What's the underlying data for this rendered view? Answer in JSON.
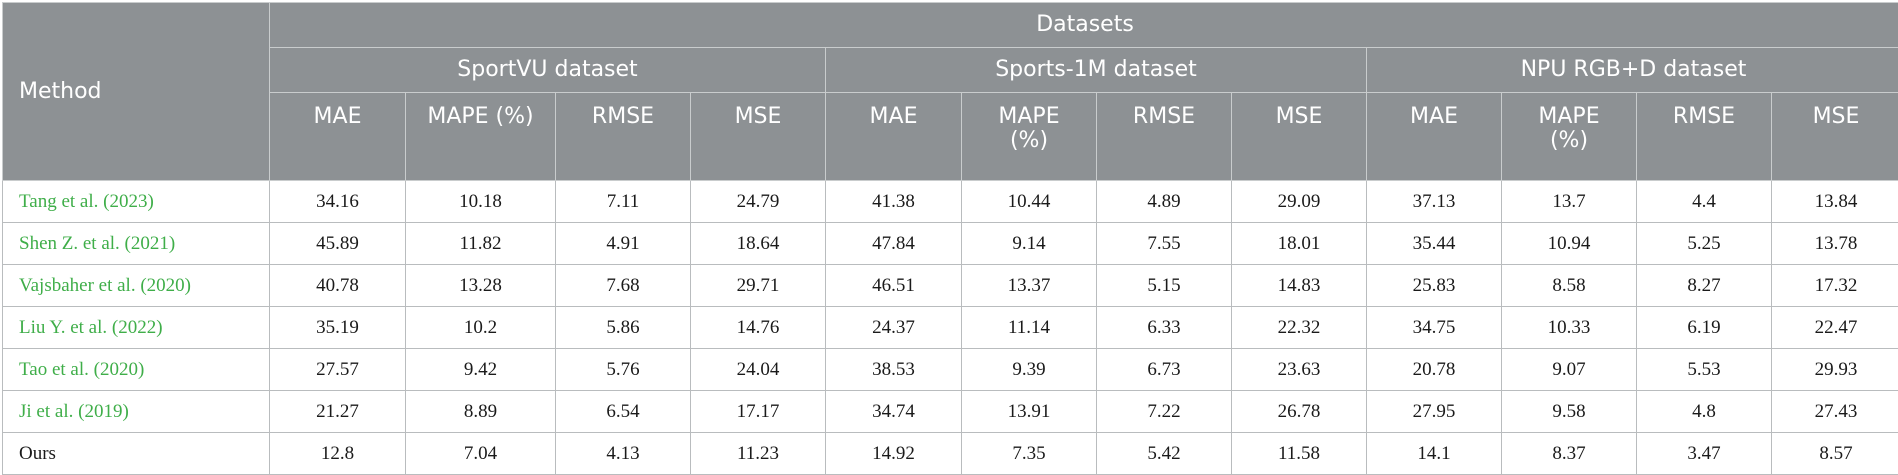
{
  "header": {
    "method_label": "Method",
    "datasets_label": "Datasets",
    "groups": [
      "SportVU dataset",
      "Sports-1M dataset",
      "NPU RGB+D dataset"
    ],
    "metrics": [
      "MAE",
      "MAPE (%)",
      "RMSE",
      "MSE",
      "MAE",
      "MAPE\n(%)",
      "RMSE",
      "MSE",
      "MAE",
      "MAPE\n(%)",
      "RMSE",
      "MSE"
    ]
  },
  "rows": [
    {
      "author": "Tang et al. (",
      "year": "2023",
      "close": ")",
      "values": [
        "34.16",
        "10.18",
        "7.11",
        "24.79",
        "41.38",
        "10.44",
        "4.89",
        "29.09",
        "37.13",
        "13.7",
        "4.4",
        "13.84"
      ]
    },
    {
      "author": "Shen Z. et al. (",
      "year": "2021",
      "close": ")",
      "values": [
        "45.89",
        "11.82",
        "4.91",
        "18.64",
        "47.84",
        "9.14",
        "7.55",
        "18.01",
        "35.44",
        "10.94",
        "5.25",
        "13.78"
      ]
    },
    {
      "author": "Vajsbaher et al. (",
      "year": "2020",
      "close": ")",
      "values": [
        "40.78",
        "13.28",
        "7.68",
        "29.71",
        "46.51",
        "13.37",
        "5.15",
        "14.83",
        "25.83",
        "8.58",
        "8.27",
        "17.32"
      ]
    },
    {
      "author": "Liu Y. et al. (",
      "year": "2022",
      "close": ")",
      "values": [
        "35.19",
        "10.2",
        "5.86",
        "14.76",
        "24.37",
        "11.14",
        "6.33",
        "22.32",
        "34.75",
        "10.33",
        "6.19",
        "22.47"
      ]
    },
    {
      "author": "Tao et al. (",
      "year": "2020",
      "close": ")",
      "values": [
        "27.57",
        "9.42",
        "5.76",
        "24.04",
        "38.53",
        "9.39",
        "6.73",
        "23.63",
        "20.78",
        "9.07",
        "5.53",
        "29.93"
      ]
    },
    {
      "author": "Ji et al. (",
      "year": "2019",
      "close": ")",
      "values": [
        "21.27",
        "8.89",
        "6.54",
        "17.17",
        "34.74",
        "13.91",
        "7.22",
        "26.78",
        "27.95",
        "9.58",
        "4.8",
        "27.43"
      ]
    },
    {
      "author": "Ours",
      "year": "",
      "close": "",
      "values": [
        "12.8",
        "7.04",
        "4.13",
        "11.23",
        "14.92",
        "7.35",
        "5.42",
        "11.58",
        "14.1",
        "8.37",
        "3.47",
        "8.57"
      ]
    }
  ],
  "colors": {
    "header_bg": "#8d9194",
    "header_text": "#ffffff",
    "citation_green": "#3fae49",
    "body_text": "#1a1a1a"
  }
}
